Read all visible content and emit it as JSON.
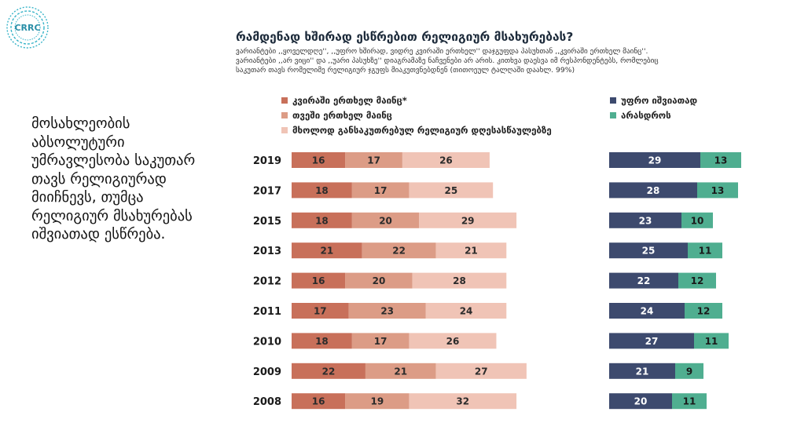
{
  "logo": {
    "text": "CRRC"
  },
  "title": "რამდენად ხშირად ესწრებით რელიგიურ მსახურებას?",
  "subtitle": "ვარიანტები ,,ყოველდღე'', ,,უფრო ხშირად, ვიდრე კვირაში ერთხელ'' დაჯგუფდა პასუხთან ,,კვირაში ერთხელ მაინც''. ვარიანტები ,,არ ვიცი'' და ,,უარი პასუხზე'' დიაგრამაზე ნაჩვენები არ არის. კითხვა დაესვა იმ რესპონდენტებს, რომლებიც საკუთარ თავს რომელიმე რელიგიურ ჯგუფს მიაკუთვნებდნენ (თითოეულ ტალღაში დაახლ. 99%)",
  "side_text": "მოსახლეობის აბსოლუტური უმრავლესობა საკუთარ თავს რელიგიურად მიიჩნევს, თუმცა რელიგიურ მსახურებას იშვიათად ესწრება.",
  "colors": {
    "weekly": "#c8705a",
    "monthly": "#dc9c86",
    "special": "#f0c4b6",
    "rarely": "#3d4a6e",
    "never": "#4fae90"
  },
  "chart_data": [
    {
      "type": "bar",
      "stacked": true,
      "orientation": "horizontal",
      "categories": [
        "2019",
        "2017",
        "2015",
        "2013",
        "2012",
        "2011",
        "2010",
        "2009",
        "2008"
      ],
      "series": [
        {
          "name": "კვირაში ერთხელ მაინც*",
          "values": [
            16,
            18,
            18,
            21,
            16,
            17,
            18,
            22,
            16
          ]
        },
        {
          "name": "თვეში ერთხელ მაინც",
          "values": [
            17,
            17,
            20,
            22,
            20,
            23,
            17,
            21,
            19
          ]
        },
        {
          "name": "მხოლოდ განსაკუთრებულ რელიგიურ დღესასწაულებზე",
          "values": [
            26,
            25,
            29,
            21,
            28,
            24,
            26,
            27,
            32
          ]
        }
      ],
      "unit": "%"
    },
    {
      "type": "bar",
      "stacked": true,
      "orientation": "horizontal",
      "categories": [
        "2019",
        "2017",
        "2015",
        "2013",
        "2012",
        "2011",
        "2010",
        "2009",
        "2008"
      ],
      "series": [
        {
          "name": "უფრო იშვიათად",
          "values": [
            29,
            28,
            23,
            25,
            22,
            24,
            27,
            21,
            20
          ]
        },
        {
          "name": "არასდროს",
          "values": [
            13,
            13,
            10,
            11,
            12,
            12,
            11,
            9,
            11
          ]
        }
      ],
      "unit": "%"
    }
  ]
}
